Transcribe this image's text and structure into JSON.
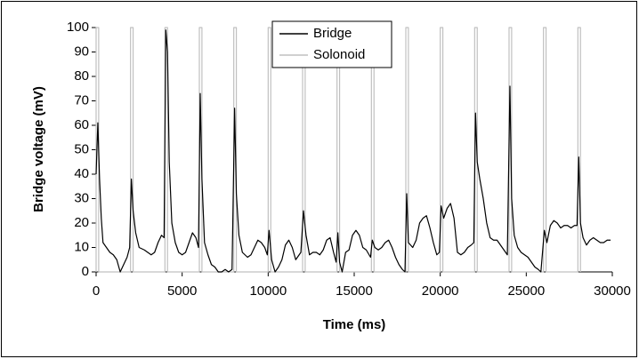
{
  "chart_data": {
    "type": "line",
    "xlabel": "Time (ms)",
    "ylabel": "Bridge voltage (mV)",
    "xlim": [
      0,
      30000
    ],
    "xticks": [
      0,
      5000,
      10000,
      15000,
      20000,
      25000,
      30000
    ],
    "ylim": [
      0,
      100
    ],
    "yticks": [
      0,
      10,
      20,
      30,
      40,
      50,
      60,
      70,
      80,
      90,
      100
    ],
    "grid": false,
    "legend": "top",
    "series": [
      {
        "name": "Bridge",
        "color": "#000000",
        "x": [
          0,
          100,
          200,
          300,
          400,
          600,
          800,
          1000,
          1200,
          1400,
          1600,
          1800,
          1950,
          2050,
          2150,
          2300,
          2500,
          2800,
          3000,
          3200,
          3400,
          3600,
          3800,
          3950,
          4050,
          4150,
          4250,
          4400,
          4600,
          4800,
          5000,
          5200,
          5400,
          5600,
          5800,
          5950,
          6050,
          6150,
          6300,
          6500,
          6700,
          6900,
          7100,
          7300,
          7500,
          7700,
          7900,
          8050,
          8150,
          8300,
          8500,
          8800,
          9000,
          9200,
          9400,
          9600,
          9800,
          9950,
          10050,
          10200,
          10400,
          10600,
          10800,
          11000,
          11200,
          11400,
          11600,
          11900,
          12050,
          12200,
          12400,
          12600,
          12800,
          13000,
          13200,
          13400,
          13600,
          13800,
          13950,
          14050,
          14150,
          14300,
          14500,
          14700,
          14900,
          15100,
          15300,
          15500,
          15700,
          15950,
          16050,
          16200,
          16400,
          16600,
          16800,
          17000,
          17200,
          17400,
          17600,
          17800,
          17950,
          18050,
          18150,
          18400,
          18600,
          18800,
          19000,
          19200,
          19400,
          19600,
          19800,
          19950,
          20050,
          20200,
          20400,
          20600,
          20800,
          21000,
          21200,
          21400,
          21600,
          21800,
          21950,
          22050,
          22150,
          22300,
          22500,
          22700,
          22900,
          23100,
          23300,
          23500,
          23700,
          23900,
          24050,
          24150,
          24300,
          24500,
          24700,
          24900,
          25100,
          25300,
          25500,
          25700,
          25850,
          26050,
          26200,
          26400,
          26600,
          26800,
          27000,
          27200,
          27400,
          27600,
          27800,
          27950,
          28050,
          28150,
          28300,
          28500,
          28700,
          28900,
          29100,
          29300,
          29500,
          29700,
          29900
        ],
        "values": [
          40,
          61,
          38,
          22,
          12,
          10,
          8,
          7,
          5,
          0,
          3,
          6,
          10,
          38,
          25,
          16,
          10,
          9,
          8,
          7,
          8,
          12,
          15,
          14,
          99,
          90,
          45,
          20,
          12,
          8,
          7,
          8,
          12,
          16,
          14,
          10,
          73,
          38,
          12,
          7,
          3,
          2,
          0,
          0,
          1,
          0,
          1,
          67,
          32,
          15,
          8,
          6,
          7,
          10,
          13,
          12,
          10,
          7,
          17,
          5,
          0,
          2,
          5,
          11,
          13,
          10,
          5,
          8,
          25,
          15,
          7,
          8,
          8,
          7,
          9,
          13,
          14,
          8,
          4,
          16,
          4,
          0,
          8,
          9,
          15,
          17,
          15,
          10,
          9,
          6,
          13,
          10,
          9,
          10,
          12,
          13,
          10,
          6,
          3,
          1,
          0,
          32,
          12,
          10,
          13,
          20,
          22,
          23,
          18,
          12,
          7,
          8,
          27,
          22,
          26,
          28,
          22,
          8,
          7,
          8,
          10,
          11,
          12,
          65,
          45,
          38,
          30,
          20,
          14,
          13,
          13,
          11,
          9,
          7,
          76,
          30,
          15,
          10,
          8,
          7,
          6,
          4,
          2,
          1,
          0,
          17,
          12,
          19,
          21,
          20,
          18,
          19,
          19,
          18,
          19,
          19,
          47,
          20,
          14,
          11,
          13,
          14,
          13,
          12,
          12,
          13,
          13
        ]
      },
      {
        "name": "Solonoid",
        "color": "#c0c0c0",
        "x": [
          0,
          0,
          150,
          150,
          2000,
          2000,
          2150,
          2150,
          4000,
          4000,
          4150,
          4150,
          6000,
          6000,
          6150,
          6150,
          8000,
          8000,
          8150,
          8150,
          10000,
          10000,
          10150,
          10150,
          12000,
          12000,
          12150,
          12150,
          14000,
          14000,
          14150,
          14150,
          16000,
          16000,
          16150,
          16150,
          18000,
          18000,
          18150,
          18150,
          20000,
          20000,
          20150,
          20150,
          22000,
          22000,
          22150,
          22150,
          24000,
          24000,
          24150,
          24150,
          26000,
          26000,
          26150,
          26150,
          28000,
          28000,
          28150,
          28150
        ],
        "values": [
          0,
          100,
          100,
          0,
          0,
          100,
          100,
          0,
          0,
          100,
          100,
          0,
          0,
          100,
          100,
          0,
          0,
          100,
          100,
          0,
          0,
          100,
          100,
          0,
          0,
          100,
          100,
          0,
          0,
          100,
          100,
          0,
          0,
          100,
          100,
          0,
          0,
          100,
          100,
          0,
          0,
          100,
          100,
          0,
          0,
          100,
          100,
          0,
          0,
          100,
          100,
          0,
          0,
          100,
          100,
          0,
          0,
          100,
          100,
          0
        ]
      }
    ]
  }
}
